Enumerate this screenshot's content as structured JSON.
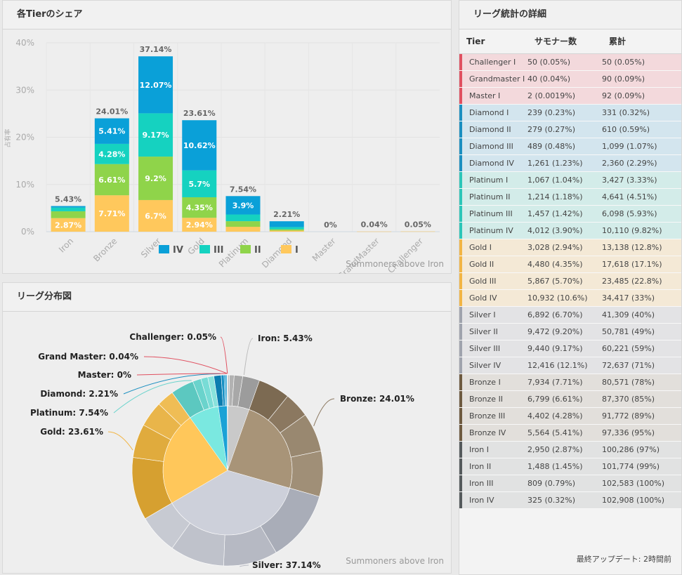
{
  "share_panel": {
    "title": "各Tierのシェア",
    "credit": "Summoners above Iron"
  },
  "distribution_panel": {
    "title": "リーグ分布図",
    "credit": "Summoners above Iron",
    "labels": {
      "iron": "Iron: 5.43%",
      "bronze": "Bronze: 24.01%",
      "silver": "Silver: 37.14%",
      "gold": "Gold: 23.61%",
      "platinum": "Platinum: 7.54%",
      "diamond": "Diamond: 2.21%",
      "master": "Master: 0%",
      "grandmaster": "Grand Master: 0.04%",
      "challenger": "Challenger: 0.05%"
    }
  },
  "colors": {
    "iv": "#0aa0d8",
    "iii": "#15d2c0",
    "ii": "#8fd44a",
    "i": "#ffc85c",
    "challenger": "#e05060",
    "grandmaster": "#e05060",
    "master": "#e05060",
    "diamond": "#1b8fc0",
    "platinum": "#2cc6b8",
    "gold": "#f2b544",
    "silver": "#9fa3ad",
    "bronze": "#6e5a40",
    "iron": "#555a5c"
  },
  "chart_data": [
    {
      "type": "bar",
      "stacked": true,
      "title": "各Tierのシェア",
      "ylabel": "占有率",
      "ylim": [
        0,
        40
      ],
      "yticks": [
        "0%",
        "10%",
        "20%",
        "30%",
        "40%"
      ],
      "categories": [
        "Iron",
        "Bronze",
        "Silver",
        "Gold",
        "Platinum",
        "Diamond",
        "Master",
        "GrandMaster",
        "Challenger"
      ],
      "totals": [
        5.43,
        24.01,
        37.14,
        23.61,
        7.54,
        2.21,
        0,
        0.04,
        0.05
      ],
      "total_labels": [
        "5.43%",
        "24.01%",
        "37.14%",
        "23.61%",
        "7.54%",
        "2.21%",
        "0%",
        "0.04%",
        "0.05%"
      ],
      "series": [
        {
          "name": "I",
          "values": [
            2.87,
            7.71,
            6.7,
            2.94,
            1.04,
            0.23,
            0,
            0.04,
            0.05
          ],
          "labels": [
            "2.87%",
            "7.71%",
            "6.7%",
            "2.94%",
            "",
            "",
            "",
            "",
            ""
          ]
        },
        {
          "name": "II",
          "values": [
            1.45,
            6.61,
            9.2,
            4.35,
            1.18,
            0.27,
            0,
            0,
            0
          ],
          "labels": [
            "",
            "6.61%",
            "9.2%",
            "4.35%",
            "",
            "",
            "",
            "",
            ""
          ]
        },
        {
          "name": "III",
          "values": [
            0.79,
            4.28,
            9.17,
            5.7,
            1.42,
            0.48,
            0,
            0,
            0
          ],
          "labels": [
            "",
            "4.28%",
            "9.17%",
            "5.7%",
            "",
            "",
            "",
            "",
            ""
          ]
        },
        {
          "name": "IV",
          "values": [
            0.32,
            5.41,
            12.07,
            10.62,
            3.9,
            1.23,
            0,
            0,
            0
          ],
          "labels": [
            "",
            "5.41%",
            "12.07%",
            "10.62%",
            "3.9%",
            "",
            "",
            "",
            ""
          ]
        }
      ],
      "legend": [
        "IV",
        "III",
        "II",
        "I"
      ],
      "legend_position": "bottom"
    },
    {
      "type": "pie",
      "title": "リーグ分布図",
      "inner": [
        {
          "name": "Iron",
          "value": 5.43
        },
        {
          "name": "Bronze",
          "value": 24.01
        },
        {
          "name": "Silver",
          "value": 37.14
        },
        {
          "name": "Gold",
          "value": 23.61
        },
        {
          "name": "Platinum",
          "value": 7.54
        },
        {
          "name": "Diamond",
          "value": 2.21
        },
        {
          "name": "Master",
          "value": 0
        },
        {
          "name": "Grand Master",
          "value": 0.04
        },
        {
          "name": "Challenger",
          "value": 0.05
        }
      ],
      "outer": [
        {
          "tier": "Iron",
          "values": [
            0.32,
            0.79,
            1.45,
            2.87
          ]
        },
        {
          "tier": "Bronze",
          "values": [
            5.41,
            4.28,
            6.61,
            7.71
          ]
        },
        {
          "tier": "Silver",
          "values": [
            12.07,
            9.17,
            9.2,
            6.7
          ]
        },
        {
          "tier": "Gold",
          "values": [
            10.62,
            5.7,
            4.35,
            2.94
          ]
        },
        {
          "tier": "Platinum",
          "values": [
            3.9,
            1.42,
            1.18,
            1.04
          ]
        },
        {
          "tier": "Diamond",
          "values": [
            1.23,
            0.48,
            0.27,
            0.23
          ]
        },
        {
          "tier": "Master",
          "values": [
            0.0019
          ]
        },
        {
          "tier": "Grand Master",
          "values": [
            0.04
          ]
        },
        {
          "tier": "Challenger",
          "values": [
            0.05
          ]
        }
      ]
    }
  ],
  "stats_panel": {
    "title": "リーグ統計の詳細",
    "headers": [
      "Tier",
      "サモナー数",
      "累計"
    ],
    "rows": [
      {
        "tier": "Challenger I",
        "count": "50 (0.05%)",
        "cumulative": "50 (0.05%)",
        "group": "challenger"
      },
      {
        "tier": "Grandmaster I",
        "count": "40 (0.04%)",
        "cumulative": "90 (0.09%)",
        "group": "challenger"
      },
      {
        "tier": "Master I",
        "count": "2 (0.0019%)",
        "cumulative": "92 (0.09%)",
        "group": "challenger"
      },
      {
        "tier": "Diamond I",
        "count": "239 (0.23%)",
        "cumulative": "331 (0.32%)",
        "group": "diamond"
      },
      {
        "tier": "Diamond II",
        "count": "279 (0.27%)",
        "cumulative": "610 (0.59%)",
        "group": "diamond"
      },
      {
        "tier": "Diamond III",
        "count": "489 (0.48%)",
        "cumulative": "1,099 (1.07%)",
        "group": "diamond"
      },
      {
        "tier": "Diamond IV",
        "count": "1,261 (1.23%)",
        "cumulative": "2,360 (2.29%)",
        "group": "diamond"
      },
      {
        "tier": "Platinum I",
        "count": "1,067 (1.04%)",
        "cumulative": "3,427 (3.33%)",
        "group": "platinum"
      },
      {
        "tier": "Platinum II",
        "count": "1,214 (1.18%)",
        "cumulative": "4,641 (4.51%)",
        "group": "platinum"
      },
      {
        "tier": "Platinum III",
        "count": "1,457 (1.42%)",
        "cumulative": "6,098 (5.93%)",
        "group": "platinum"
      },
      {
        "tier": "Platinum IV",
        "count": "4,012 (3.90%)",
        "cumulative": "10,110 (9.82%)",
        "group": "platinum"
      },
      {
        "tier": "Gold I",
        "count": "3,028 (2.94%)",
        "cumulative": "13,138 (12.8%)",
        "group": "gold"
      },
      {
        "tier": "Gold II",
        "count": "4,480 (4.35%)",
        "cumulative": "17,618 (17.1%)",
        "group": "gold"
      },
      {
        "tier": "Gold III",
        "count": "5,867 (5.70%)",
        "cumulative": "23,485 (22.8%)",
        "group": "gold"
      },
      {
        "tier": "Gold IV",
        "count": "10,932 (10.6%)",
        "cumulative": "34,417 (33%)",
        "group": "gold"
      },
      {
        "tier": "Silver I",
        "count": "6,892 (6.70%)",
        "cumulative": "41,309 (40%)",
        "group": "silver"
      },
      {
        "tier": "Silver II",
        "count": "9,472 (9.20%)",
        "cumulative": "50,781 (49%)",
        "group": "silver"
      },
      {
        "tier": "Silver III",
        "count": "9,440 (9.17%)",
        "cumulative": "60,221 (59%)",
        "group": "silver"
      },
      {
        "tier": "Silver IV",
        "count": "12,416 (12.1%)",
        "cumulative": "72,637 (71%)",
        "group": "silver"
      },
      {
        "tier": "Bronze I",
        "count": "7,934 (7.71%)",
        "cumulative": "80,571 (78%)",
        "group": "bronze"
      },
      {
        "tier": "Bronze II",
        "count": "6,799 (6.61%)",
        "cumulative": "87,370 (85%)",
        "group": "bronze"
      },
      {
        "tier": "Bronze III",
        "count": "4,402 (4.28%)",
        "cumulative": "91,772 (89%)",
        "group": "bronze"
      },
      {
        "tier": "Bronze IV",
        "count": "5,564 (5.41%)",
        "cumulative": "97,336 (95%)",
        "group": "bronze"
      },
      {
        "tier": "Iron I",
        "count": "2,950 (2.87%)",
        "cumulative": "100,286 (97%)",
        "group": "iron"
      },
      {
        "tier": "Iron II",
        "count": "1,488 (1.45%)",
        "cumulative": "101,774 (99%)",
        "group": "iron"
      },
      {
        "tier": "Iron III",
        "count": "809 (0.79%)",
        "cumulative": "102,583 (100%)",
        "group": "iron"
      },
      {
        "tier": "Iron IV",
        "count": "325 (0.32%)",
        "cumulative": "102,908 (100%)",
        "group": "iron"
      }
    ],
    "last_updated": "最終アップデート: 2時間前"
  }
}
